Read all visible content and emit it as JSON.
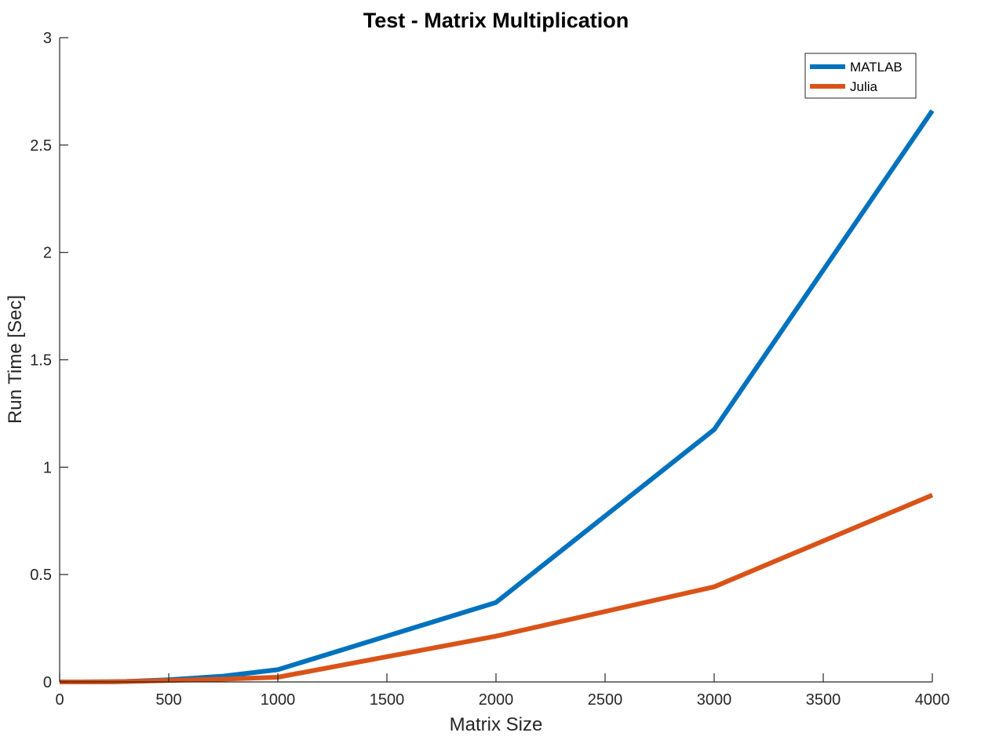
{
  "chart_data": {
    "type": "line",
    "title": "Test - Matrix Multiplication",
    "xlabel": "Matrix Size",
    "ylabel": "Run Time  [Sec]",
    "xlim": [
      0,
      4000
    ],
    "ylim": [
      0,
      3
    ],
    "xticks": [
      0,
      500,
      1000,
      1500,
      2000,
      2500,
      3000,
      3500,
      4000
    ],
    "yticks": [
      0,
      0.5,
      1,
      1.5,
      2,
      2.5,
      3
    ],
    "xtick_labels": [
      "0",
      "500",
      "1000",
      "1500",
      "2000",
      "2500",
      "3000",
      "3500",
      "4000"
    ],
    "ytick_labels": [
      "0",
      "0.5",
      "1",
      "1.5",
      "2",
      "2.5",
      "3"
    ],
    "grid": false,
    "legend_position": "top-right",
    "series": [
      {
        "name": "MATLAB",
        "color": "#0072BD",
        "x": [
          0,
          10,
          50,
          100,
          250,
          300,
          500,
          750,
          1000,
          2000,
          3000,
          4000
        ],
        "y": [
          0,
          0,
          0,
          0,
          0.001,
          0.002,
          0.01,
          0.027,
          0.057,
          0.37,
          1.175,
          2.66
        ]
      },
      {
        "name": "Julia",
        "color": "#D95319",
        "x": [
          0,
          10,
          50,
          100,
          250,
          300,
          500,
          750,
          1000,
          2000,
          3000,
          4000
        ],
        "y": [
          0,
          0,
          0,
          0,
          0.001,
          0.002,
          0.007,
          0.013,
          0.022,
          0.213,
          0.443,
          0.87
        ]
      }
    ]
  }
}
